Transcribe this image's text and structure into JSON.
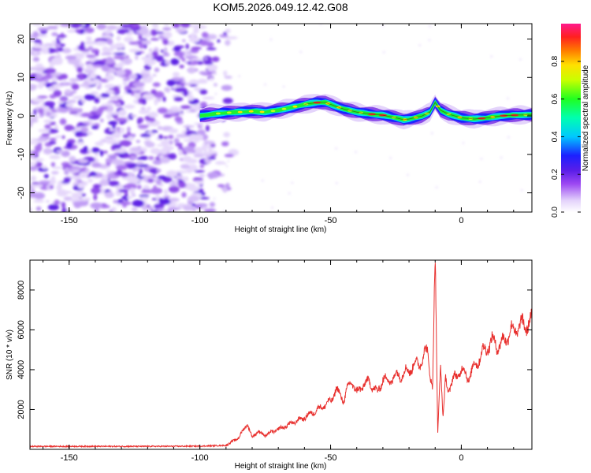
{
  "title": "KOM5.2026.049.12.42.G08",
  "chart_data": [
    {
      "type": "heatmap",
      "xlabel": "Height of straight line (km)",
      "ylabel": "Frequency (Hz)",
      "xlim": [
        -165,
        27
      ],
      "ylim": [
        -25,
        24
      ],
      "xticks": [
        -150,
        -100,
        -50,
        0
      ],
      "yticks": [
        -20,
        -10,
        0,
        10,
        20
      ],
      "noise_region": [
        -165,
        -95
      ],
      "signal_track": {
        "x": [
          -100,
          -95,
          -90,
          -85,
          -80,
          -75,
          -70,
          -65,
          -60,
          -55,
          -52,
          -48,
          -45,
          -40,
          -35,
          -30,
          -25,
          -22,
          -20,
          -18,
          -15,
          -12,
          -10,
          -8,
          -5,
          0,
          5,
          10,
          15,
          20,
          27
        ],
        "y": [
          0,
          0.5,
          0.8,
          1,
          1.2,
          1.0,
          1.5,
          2.2,
          3.0,
          3.5,
          3.5,
          2.5,
          1.8,
          1.0,
          0.5,
          0.2,
          -0.5,
          -1.0,
          -0.8,
          -0.5,
          0,
          1.0,
          3.5,
          1.5,
          0.5,
          -0.5,
          -0.8,
          -0.5,
          0,
          0.2,
          0.3
        ]
      },
      "colorbar": {
        "label": "Normalized spectral amplitude",
        "range": [
          0,
          1
        ],
        "ticks": [
          0.0,
          0.2,
          0.4,
          0.6,
          0.8
        ]
      }
    },
    {
      "type": "line",
      "xlabel": "Height of straight line (km)",
      "ylabel": "SNR (10 * v/v)",
      "xlim": [
        -165,
        27
      ],
      "ylim": [
        0,
        9500
      ],
      "xticks": [
        -150,
        -100,
        -50,
        0
      ],
      "yticks": [
        2000,
        4000,
        6000,
        8000
      ],
      "series": [
        {
          "color": "#e8302e",
          "x": [
            -165,
            -150,
            -120,
            -100,
            -90,
            -85,
            -82,
            -80,
            -78,
            -75,
            -72,
            -70,
            -65,
            -60,
            -55,
            -50,
            -48,
            -45,
            -42,
            -40,
            -38,
            -35,
            -32,
            -30,
            -28,
            -25,
            -22,
            -20,
            -18,
            -15,
            -13,
            -11,
            -10,
            -9,
            -8,
            -7,
            -6,
            -5,
            -3,
            0,
            3,
            5,
            8,
            10,
            12,
            15,
            18,
            20,
            23,
            27
          ],
          "y": [
            150,
            150,
            150,
            160,
            200,
            600,
            1300,
            600,
            900,
            700,
            900,
            1000,
            1300,
            1600,
            2000,
            2400,
            3000,
            2500,
            3500,
            2800,
            3200,
            3400,
            2800,
            3600,
            3400,
            3700,
            3800,
            4000,
            4200,
            4500,
            5000,
            3000,
            9500,
            800,
            4500,
            1500,
            3500,
            3000,
            3500,
            4000,
            3600,
            4200,
            4800,
            5200,
            5400,
            5200,
            5800,
            6000,
            6200,
            6400
          ]
        }
      ]
    }
  ]
}
